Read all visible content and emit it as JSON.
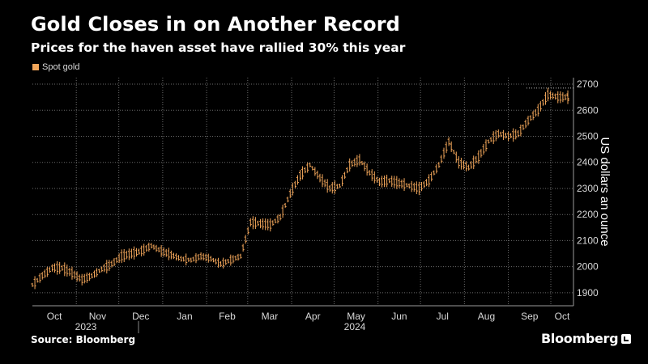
{
  "title": "Gold Closes in on Another Record",
  "subtitle": "Prices for the haven asset have rallied 30% this year",
  "source": "Source: Bloomberg",
  "brand": "Bloomberg",
  "colors": {
    "series": "#f2a65a",
    "grid": "#6b6b6b",
    "axis_text": "#d9d9d9",
    "background": "#000000"
  },
  "chart_data": {
    "type": "line",
    "style": "ohlc-bars",
    "series": [
      {
        "name": "Spot gold",
        "x": [
          "2023-10-01",
          "2023-10-08",
          "2023-10-15",
          "2023-10-22",
          "2023-10-29",
          "2023-11-05",
          "2023-11-12",
          "2023-11-19",
          "2023-11-26",
          "2023-12-03",
          "2023-12-10",
          "2023-12-17",
          "2023-12-24",
          "2023-12-31",
          "2024-01-07",
          "2024-01-14",
          "2024-01-21",
          "2024-01-28",
          "2024-02-04",
          "2024-02-11",
          "2024-02-18",
          "2024-02-25",
          "2024-03-03",
          "2024-03-10",
          "2024-03-17",
          "2024-03-24",
          "2024-03-31",
          "2024-04-07",
          "2024-04-14",
          "2024-04-21",
          "2024-04-28",
          "2024-05-05",
          "2024-05-12",
          "2024-05-19",
          "2024-05-26",
          "2024-06-02",
          "2024-06-09",
          "2024-06-16",
          "2024-06-23",
          "2024-06-30",
          "2024-07-07",
          "2024-07-14",
          "2024-07-21",
          "2024-07-28",
          "2024-08-04",
          "2024-08-11",
          "2024-08-18",
          "2024-08-25",
          "2024-09-01",
          "2024-09-08",
          "2024-09-15",
          "2024-09-22",
          "2024-09-29",
          "2024-10-06",
          "2024-10-13"
        ],
        "values": [
          1930,
          1965,
          1995,
          1995,
          1975,
          1950,
          1965,
          1990,
          2010,
          2040,
          2050,
          2060,
          2080,
          2060,
          2045,
          2030,
          2025,
          2040,
          2030,
          2010,
          2025,
          2040,
          2170,
          2165,
          2160,
          2190,
          2280,
          2350,
          2390,
          2340,
          2300,
          2310,
          2390,
          2410,
          2360,
          2325,
          2330,
          2320,
          2310,
          2300,
          2330,
          2390,
          2480,
          2400,
          2380,
          2420,
          2480,
          2510,
          2500,
          2510,
          2560,
          2600,
          2660,
          2650,
          2650
        ]
      }
    ],
    "y_axis": {
      "label": "US dollars an ounce",
      "ticks": [
        1900,
        2000,
        2100,
        2200,
        2300,
        2400,
        2500,
        2600,
        2700
      ],
      "range": [
        1850,
        2725
      ],
      "position": "right"
    },
    "x_axis": {
      "month_labels": [
        "Oct",
        "Nov",
        "Dec",
        "Jan",
        "Feb",
        "Mar",
        "Apr",
        "May",
        "Jun",
        "Jul",
        "Aug",
        "Sep",
        "Oct"
      ],
      "year_labels": [
        "2023",
        "2024"
      ],
      "range": [
        "2023-10-01",
        "2024-10-17"
      ]
    },
    "annotations": [
      {
        "type": "dotted-hline",
        "y": 2685
      }
    ],
    "grid": true,
    "legend": "top-left"
  }
}
